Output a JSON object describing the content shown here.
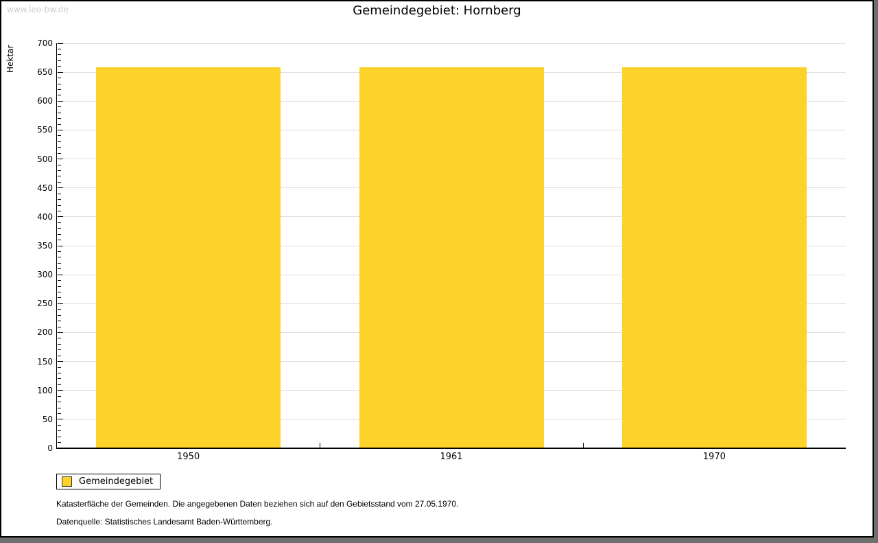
{
  "watermark": "www.leo-bw.de",
  "title": "Gemeindegebiet: Hornberg",
  "legend": {
    "label": "Gemeindegebiet"
  },
  "footnotes": {
    "line1": "Katasterfläche der Gemeinden. Die angegebenen Daten beziehen sich auf den Gebietsstand vom 27.05.1970.",
    "line2": "Datenquelle: Statistisches Landesamt Baden-Württemberg."
  },
  "colors": {
    "bar": "#FDD32B",
    "gridline": "#dddddd",
    "axis": "#000000",
    "watermark": "#cccccc",
    "frame_shadow": "#6f6f6f"
  },
  "chart_data": {
    "type": "bar",
    "title": "Gemeindegebiet: Hornberg",
    "categories": [
      "1950",
      "1961",
      "1970"
    ],
    "series": [
      {
        "name": "Gemeindegebiet",
        "values": [
          658,
          658,
          658
        ]
      }
    ],
    "xlabel": "",
    "ylabel": "Hektar",
    "ylim": [
      0,
      700
    ],
    "ytick_step": 50,
    "minor_tick_step": 10,
    "grid": "horizontal-major",
    "legend_position": "bottom-left",
    "bar_color": "#FDD32B"
  }
}
